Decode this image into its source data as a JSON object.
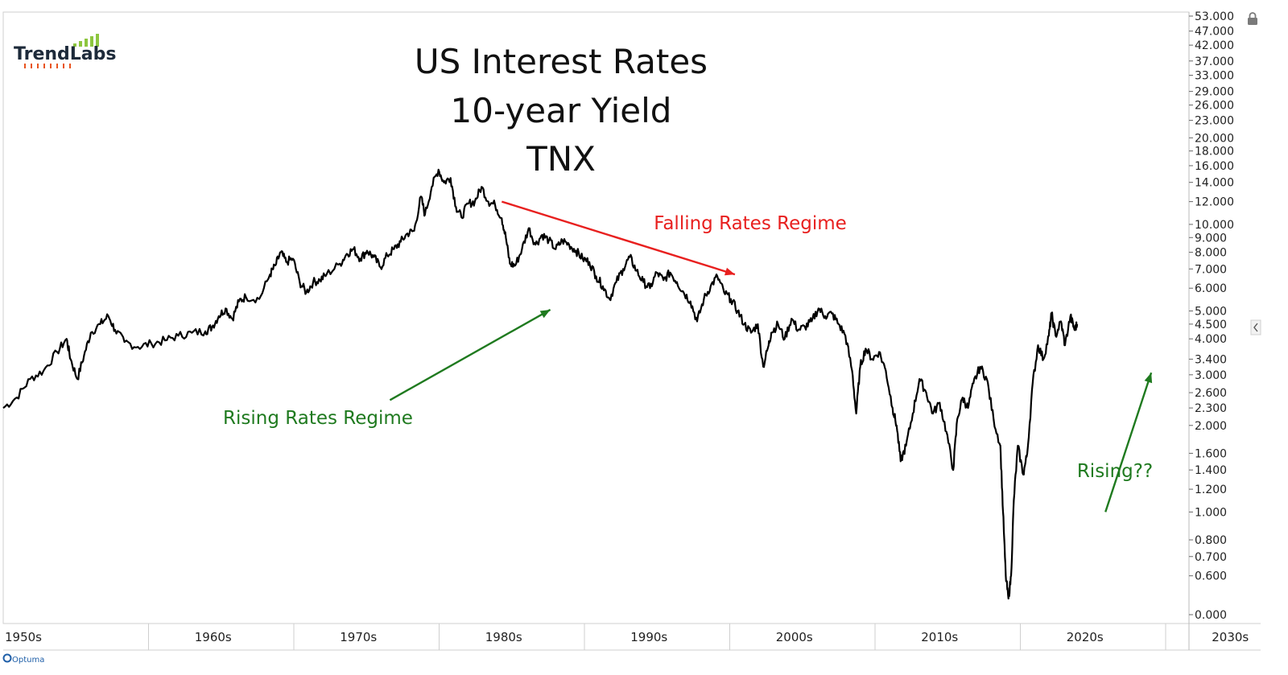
{
  "colors": {
    "rising": "#1f7a1f",
    "falling": "#e8201f",
    "line": "#000000",
    "grid": "#dddddd",
    "logo_bars": "#8dc63f",
    "logo_ticks": "#e8541f"
  },
  "logo": {
    "text": "TrendLabs",
    "icon": "trendlabs-bars-icon"
  },
  "footer": {
    "brand": "Optuma",
    "icon": "optuma-logo-icon"
  },
  "chart_data": {
    "type": "line",
    "title": [
      "US Interest Rates",
      "10-year Yield",
      "TNX"
    ],
    "y_scale": "log",
    "y_ticks": [
      "53.000",
      "47.000",
      "42.000",
      "37.000",
      "33.000",
      "29.000",
      "26.000",
      "23.000",
      "20.000",
      "18.000",
      "16.000",
      "14.000",
      "12.000",
      "10.000",
      "9.000",
      "8.000",
      "7.000",
      "6.000",
      "5.000",
      "4.500",
      "4.000",
      "3.400",
      "3.000",
      "2.600",
      "2.300",
      "2.000",
      "1.600",
      "1.400",
      "1.200",
      "1.000",
      "0.800",
      "0.700",
      "0.600",
      "0.000"
    ],
    "x_ticks": [
      "1950s",
      "1960s",
      "1970s",
      "1980s",
      "1990s",
      "2000s",
      "2010s",
      "2020s",
      "2030s"
    ],
    "xlim": [
      1946,
      2034
    ],
    "series": [
      {
        "points": [
          [
            1946.0,
            2.3
          ],
          [
            1947.0,
            2.5
          ],
          [
            1948.0,
            2.9
          ],
          [
            1949.0,
            3.1
          ],
          [
            1950.0,
            3.6
          ],
          [
            1950.7,
            4.0
          ],
          [
            1951.0,
            3.4
          ],
          [
            1951.5,
            2.9
          ],
          [
            1952.0,
            3.5
          ],
          [
            1952.5,
            4.2
          ],
          [
            1953.2,
            4.5
          ],
          [
            1953.8,
            4.8
          ],
          [
            1954.3,
            4.3
          ],
          [
            1955.0,
            3.9
          ],
          [
            1956.0,
            3.75
          ],
          [
            1957.0,
            3.85
          ],
          [
            1958.0,
            3.95
          ],
          [
            1959.0,
            4.1
          ],
          [
            1960.0,
            4.2
          ],
          [
            1961.0,
            4.25
          ],
          [
            1961.5,
            4.4
          ],
          [
            1962.0,
            4.8
          ],
          [
            1962.5,
            5.1
          ],
          [
            1963.0,
            4.7
          ],
          [
            1963.5,
            5.4
          ],
          [
            1964.0,
            5.6
          ],
          [
            1965.0,
            5.5
          ],
          [
            1965.8,
            6.7
          ],
          [
            1966.2,
            7.2
          ],
          [
            1966.6,
            8.0
          ],
          [
            1967.0,
            7.4
          ],
          [
            1967.5,
            7.6
          ],
          [
            1968.0,
            6.3
          ],
          [
            1968.5,
            5.8
          ],
          [
            1969.0,
            6.3
          ],
          [
            1969.5,
            6.4
          ],
          [
            1970.0,
            6.7
          ],
          [
            1971.0,
            7.3
          ],
          [
            1971.5,
            7.9
          ],
          [
            1972.0,
            8.2
          ],
          [
            1972.5,
            7.6
          ],
          [
            1973.0,
            8.1
          ],
          [
            1973.5,
            7.7
          ],
          [
            1974.0,
            7.1
          ],
          [
            1974.5,
            7.8
          ],
          [
            1975.0,
            8.2
          ],
          [
            1975.5,
            8.7
          ],
          [
            1976.0,
            9.3
          ],
          [
            1976.5,
            9.5
          ],
          [
            1977.0,
            12.5
          ],
          [
            1977.3,
            10.8
          ],
          [
            1977.8,
            13.5
          ],
          [
            1978.3,
            15.5
          ],
          [
            1978.7,
            14.0
          ],
          [
            1979.2,
            14.5
          ],
          [
            1979.6,
            11.5
          ],
          [
            1980.0,
            10.6
          ],
          [
            1980.5,
            11.8
          ],
          [
            1981.0,
            12.0
          ],
          [
            1981.5,
            13.5
          ],
          [
            1982.0,
            12.0
          ],
          [
            1982.5,
            11.7
          ],
          [
            1983.0,
            10.5
          ],
          [
            1983.3,
            9.0
          ],
          [
            1983.6,
            7.3
          ],
          [
            1984.0,
            7.2
          ],
          [
            1984.5,
            8.2
          ],
          [
            1985.0,
            9.7
          ],
          [
            1985.5,
            8.5
          ],
          [
            1986.0,
            9.2
          ],
          [
            1986.5,
            8.8
          ],
          [
            1987.0,
            8.2
          ],
          [
            1987.5,
            8.8
          ],
          [
            1988.0,
            8.5
          ],
          [
            1988.5,
            8.1
          ],
          [
            1989.0,
            7.6
          ],
          [
            1989.5,
            7.4
          ],
          [
            1990.0,
            6.6
          ],
          [
            1990.5,
            6.1
          ],
          [
            1991.0,
            5.5
          ],
          [
            1991.5,
            6.3
          ],
          [
            1992.0,
            7.0
          ],
          [
            1992.5,
            7.7
          ],
          [
            1993.0,
            6.9
          ],
          [
            1993.5,
            6.3
          ],
          [
            1994.0,
            6.0
          ],
          [
            1994.5,
            6.8
          ],
          [
            1995.0,
            6.4
          ],
          [
            1995.5,
            6.8
          ],
          [
            1996.0,
            6.3
          ],
          [
            1996.5,
            5.8
          ],
          [
            1997.0,
            5.4
          ],
          [
            1997.5,
            4.6
          ],
          [
            1998.0,
            5.5
          ],
          [
            1998.5,
            6.1
          ],
          [
            1999.0,
            6.6
          ],
          [
            1999.5,
            5.8
          ],
          [
            2000.0,
            5.5
          ],
          [
            2000.5,
            5.0
          ],
          [
            2001.0,
            4.5
          ],
          [
            2001.5,
            4.2
          ],
          [
            2002.0,
            4.5
          ],
          [
            2002.4,
            3.2
          ],
          [
            2002.8,
            3.8
          ],
          [
            2003.0,
            4.2
          ],
          [
            2003.5,
            4.5
          ],
          [
            2004.0,
            4.0
          ],
          [
            2004.5,
            4.7
          ],
          [
            2005.0,
            4.3
          ],
          [
            2005.5,
            4.4
          ],
          [
            2006.0,
            4.6
          ],
          [
            2006.5,
            5.1
          ],
          [
            2007.0,
            4.8
          ],
          [
            2007.5,
            4.9
          ],
          [
            2008.0,
            4.5
          ],
          [
            2008.5,
            4.1
          ],
          [
            2009.0,
            3.1
          ],
          [
            2009.3,
            2.2
          ],
          [
            2009.6,
            3.2
          ],
          [
            2010.0,
            3.7
          ],
          [
            2010.5,
            3.4
          ],
          [
            2011.0,
            3.6
          ],
          [
            2011.5,
            3.1
          ],
          [
            2012.0,
            2.3
          ],
          [
            2012.3,
            2.0
          ],
          [
            2012.6,
            1.5
          ],
          [
            2013.0,
            1.7
          ],
          [
            2013.5,
            2.2
          ],
          [
            2014.0,
            2.9
          ],
          [
            2014.5,
            2.6
          ],
          [
            2015.0,
            2.2
          ],
          [
            2015.5,
            2.4
          ],
          [
            2016.0,
            1.9
          ],
          [
            2016.5,
            1.4
          ],
          [
            2016.8,
            2.1
          ],
          [
            2017.2,
            2.5
          ],
          [
            2017.6,
            2.3
          ],
          [
            2018.0,
            2.8
          ],
          [
            2018.5,
            3.2
          ],
          [
            2019.0,
            2.9
          ],
          [
            2019.5,
            2.1
          ],
          [
            2020.0,
            1.7
          ],
          [
            2020.2,
            1.0
          ],
          [
            2020.4,
            0.6
          ],
          [
            2020.6,
            0.5
          ],
          [
            2020.8,
            0.6
          ],
          [
            2021.0,
            1.1
          ],
          [
            2021.3,
            1.7
          ],
          [
            2021.7,
            1.35
          ],
          [
            2022.0,
            1.6
          ],
          [
            2022.4,
            2.8
          ],
          [
            2022.8,
            3.8
          ],
          [
            2023.2,
            3.4
          ],
          [
            2023.6,
            4.1
          ],
          [
            2023.8,
            4.9
          ],
          [
            2024.1,
            4.1
          ],
          [
            2024.5,
            4.6
          ],
          [
            2024.8,
            3.8
          ],
          [
            2025.2,
            4.8
          ],
          [
            2025.5,
            4.3
          ],
          [
            2025.7,
            4.5
          ]
        ]
      }
    ],
    "annotations": [
      {
        "text": "Falling Rates Regime",
        "color": "#e8201f",
        "arrow_from": [
          1983.0,
          12.0
        ],
        "arrow_to": [
          2000.3,
          6.7
        ]
      },
      {
        "text": "Rising Rates Regime",
        "color": "#1f7a1f",
        "arrow_from": [
          1974.7,
          2.45
        ],
        "arrow_to": [
          1986.6,
          5.05
        ]
      },
      {
        "text": "Rising??",
        "color": "#1f7a1f",
        "arrow_from": [
          2027.8,
          1.0
        ],
        "arrow_to": [
          2031.2,
          3.05
        ]
      }
    ]
  }
}
